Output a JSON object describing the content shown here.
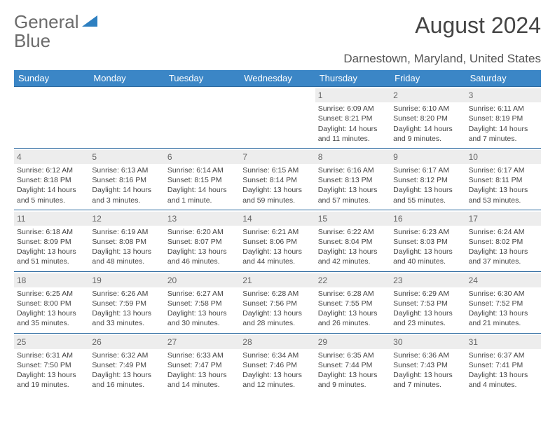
{
  "logo": {
    "word1": "General",
    "word2": "Blue"
  },
  "title": "August 2024",
  "location": "Darnestown, Maryland, United States",
  "colors": {
    "header_bg": "#3b86c6",
    "header_text": "#ffffff",
    "week_border": "#2d6aa0",
    "daynum_bg": "#ededed",
    "text": "#444444",
    "logo_gray": "#6b6b6b",
    "logo_blue": "#2d7fc0"
  },
  "day_names": [
    "Sunday",
    "Monday",
    "Tuesday",
    "Wednesday",
    "Thursday",
    "Friday",
    "Saturday"
  ],
  "weeks": [
    [
      {
        "n": "",
        "sunrise": "",
        "sunset": "",
        "daylight": ""
      },
      {
        "n": "",
        "sunrise": "",
        "sunset": "",
        "daylight": ""
      },
      {
        "n": "",
        "sunrise": "",
        "sunset": "",
        "daylight": ""
      },
      {
        "n": "",
        "sunrise": "",
        "sunset": "",
        "daylight": ""
      },
      {
        "n": "1",
        "sunrise": "Sunrise: 6:09 AM",
        "sunset": "Sunset: 8:21 PM",
        "daylight": "Daylight: 14 hours and 11 minutes."
      },
      {
        "n": "2",
        "sunrise": "Sunrise: 6:10 AM",
        "sunset": "Sunset: 8:20 PM",
        "daylight": "Daylight: 14 hours and 9 minutes."
      },
      {
        "n": "3",
        "sunrise": "Sunrise: 6:11 AM",
        "sunset": "Sunset: 8:19 PM",
        "daylight": "Daylight: 14 hours and 7 minutes."
      }
    ],
    [
      {
        "n": "4",
        "sunrise": "Sunrise: 6:12 AM",
        "sunset": "Sunset: 8:18 PM",
        "daylight": "Daylight: 14 hours and 5 minutes."
      },
      {
        "n": "5",
        "sunrise": "Sunrise: 6:13 AM",
        "sunset": "Sunset: 8:16 PM",
        "daylight": "Daylight: 14 hours and 3 minutes."
      },
      {
        "n": "6",
        "sunrise": "Sunrise: 6:14 AM",
        "sunset": "Sunset: 8:15 PM",
        "daylight": "Daylight: 14 hours and 1 minute."
      },
      {
        "n": "7",
        "sunrise": "Sunrise: 6:15 AM",
        "sunset": "Sunset: 8:14 PM",
        "daylight": "Daylight: 13 hours and 59 minutes."
      },
      {
        "n": "8",
        "sunrise": "Sunrise: 6:16 AM",
        "sunset": "Sunset: 8:13 PM",
        "daylight": "Daylight: 13 hours and 57 minutes."
      },
      {
        "n": "9",
        "sunrise": "Sunrise: 6:17 AM",
        "sunset": "Sunset: 8:12 PM",
        "daylight": "Daylight: 13 hours and 55 minutes."
      },
      {
        "n": "10",
        "sunrise": "Sunrise: 6:17 AM",
        "sunset": "Sunset: 8:11 PM",
        "daylight": "Daylight: 13 hours and 53 minutes."
      }
    ],
    [
      {
        "n": "11",
        "sunrise": "Sunrise: 6:18 AM",
        "sunset": "Sunset: 8:09 PM",
        "daylight": "Daylight: 13 hours and 51 minutes."
      },
      {
        "n": "12",
        "sunrise": "Sunrise: 6:19 AM",
        "sunset": "Sunset: 8:08 PM",
        "daylight": "Daylight: 13 hours and 48 minutes."
      },
      {
        "n": "13",
        "sunrise": "Sunrise: 6:20 AM",
        "sunset": "Sunset: 8:07 PM",
        "daylight": "Daylight: 13 hours and 46 minutes."
      },
      {
        "n": "14",
        "sunrise": "Sunrise: 6:21 AM",
        "sunset": "Sunset: 8:06 PM",
        "daylight": "Daylight: 13 hours and 44 minutes."
      },
      {
        "n": "15",
        "sunrise": "Sunrise: 6:22 AM",
        "sunset": "Sunset: 8:04 PM",
        "daylight": "Daylight: 13 hours and 42 minutes."
      },
      {
        "n": "16",
        "sunrise": "Sunrise: 6:23 AM",
        "sunset": "Sunset: 8:03 PM",
        "daylight": "Daylight: 13 hours and 40 minutes."
      },
      {
        "n": "17",
        "sunrise": "Sunrise: 6:24 AM",
        "sunset": "Sunset: 8:02 PM",
        "daylight": "Daylight: 13 hours and 37 minutes."
      }
    ],
    [
      {
        "n": "18",
        "sunrise": "Sunrise: 6:25 AM",
        "sunset": "Sunset: 8:00 PM",
        "daylight": "Daylight: 13 hours and 35 minutes."
      },
      {
        "n": "19",
        "sunrise": "Sunrise: 6:26 AM",
        "sunset": "Sunset: 7:59 PM",
        "daylight": "Daylight: 13 hours and 33 minutes."
      },
      {
        "n": "20",
        "sunrise": "Sunrise: 6:27 AM",
        "sunset": "Sunset: 7:58 PM",
        "daylight": "Daylight: 13 hours and 30 minutes."
      },
      {
        "n": "21",
        "sunrise": "Sunrise: 6:28 AM",
        "sunset": "Sunset: 7:56 PM",
        "daylight": "Daylight: 13 hours and 28 minutes."
      },
      {
        "n": "22",
        "sunrise": "Sunrise: 6:28 AM",
        "sunset": "Sunset: 7:55 PM",
        "daylight": "Daylight: 13 hours and 26 minutes."
      },
      {
        "n": "23",
        "sunrise": "Sunrise: 6:29 AM",
        "sunset": "Sunset: 7:53 PM",
        "daylight": "Daylight: 13 hours and 23 minutes."
      },
      {
        "n": "24",
        "sunrise": "Sunrise: 6:30 AM",
        "sunset": "Sunset: 7:52 PM",
        "daylight": "Daylight: 13 hours and 21 minutes."
      }
    ],
    [
      {
        "n": "25",
        "sunrise": "Sunrise: 6:31 AM",
        "sunset": "Sunset: 7:50 PM",
        "daylight": "Daylight: 13 hours and 19 minutes."
      },
      {
        "n": "26",
        "sunrise": "Sunrise: 6:32 AM",
        "sunset": "Sunset: 7:49 PM",
        "daylight": "Daylight: 13 hours and 16 minutes."
      },
      {
        "n": "27",
        "sunrise": "Sunrise: 6:33 AM",
        "sunset": "Sunset: 7:47 PM",
        "daylight": "Daylight: 13 hours and 14 minutes."
      },
      {
        "n": "28",
        "sunrise": "Sunrise: 6:34 AM",
        "sunset": "Sunset: 7:46 PM",
        "daylight": "Daylight: 13 hours and 12 minutes."
      },
      {
        "n": "29",
        "sunrise": "Sunrise: 6:35 AM",
        "sunset": "Sunset: 7:44 PM",
        "daylight": "Daylight: 13 hours and 9 minutes."
      },
      {
        "n": "30",
        "sunrise": "Sunrise: 6:36 AM",
        "sunset": "Sunset: 7:43 PM",
        "daylight": "Daylight: 13 hours and 7 minutes."
      },
      {
        "n": "31",
        "sunrise": "Sunrise: 6:37 AM",
        "sunset": "Sunset: 7:41 PM",
        "daylight": "Daylight: 13 hours and 4 minutes."
      }
    ]
  ]
}
